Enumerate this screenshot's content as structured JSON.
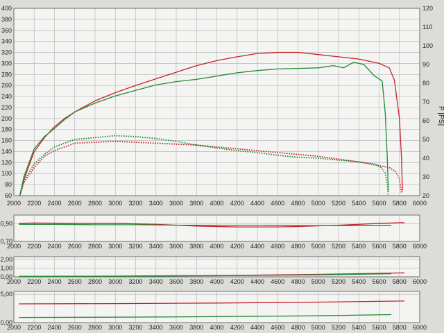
{
  "colors": {
    "red": "#c8202a",
    "green": "#1f8a32",
    "grid": "#b9b9b9",
    "paper": "#f4f4f2",
    "axis": "#555555"
  },
  "chart_data": [
    {
      "id": "main",
      "type": "line",
      "xlim": [
        2000,
        6000
      ],
      "xticks": [
        "2000",
        "2200",
        "2400",
        "2600",
        "2800",
        "3000",
        "3200",
        "3400",
        "3600",
        "3800",
        "4000",
        "4200",
        "4400",
        "4600",
        "4800",
        "5000",
        "5200",
        "5400",
        "5600",
        "5800",
        "6000"
      ],
      "ylim": [
        60,
        400
      ],
      "yticks": [
        "60",
        "80",
        "100",
        "120",
        "140",
        "160",
        "180",
        "200",
        "220",
        "240",
        "260",
        "280",
        "300",
        "320",
        "340",
        "360",
        "380",
        "400"
      ],
      "y2lim": [
        20,
        120
      ],
      "y2ticks": [
        "20",
        "30",
        "40",
        "50",
        "60",
        "70",
        "80",
        "90",
        "100",
        "110",
        "120"
      ],
      "y2label": "P [PS]",
      "grid": true,
      "series": [
        {
          "color_key": "red",
          "style": "solid",
          "axis": "left",
          "x": [
            2060,
            2100,
            2200,
            2300,
            2400,
            2500,
            2600,
            2800,
            3000,
            3200,
            3400,
            3600,
            3800,
            4000,
            4200,
            4400,
            4600,
            4800,
            5000,
            5200,
            5400,
            5600,
            5700,
            5750,
            5800,
            5820,
            5830
          ],
          "y": [
            62,
            90,
            140,
            165,
            185,
            200,
            212,
            232,
            247,
            260,
            272,
            284,
            296,
            305,
            312,
            318,
            320,
            320,
            316,
            312,
            308,
            300,
            292,
            270,
            200,
            130,
            68
          ]
        },
        {
          "color_key": "green",
          "style": "solid",
          "axis": "left",
          "x": [
            2060,
            2100,
            2200,
            2300,
            2400,
            2500,
            2600,
            2800,
            3000,
            3200,
            3400,
            3600,
            3800,
            4000,
            4200,
            4400,
            4600,
            4800,
            5000,
            5150,
            5250,
            5350,
            5450,
            5550,
            5630,
            5660,
            5680,
            5690
          ],
          "y": [
            62,
            95,
            145,
            167,
            182,
            198,
            212,
            228,
            241,
            251,
            261,
            267,
            271,
            277,
            283,
            287,
            290,
            291,
            292,
            296,
            292,
            302,
            298,
            278,
            268,
            210,
            130,
            68
          ]
        },
        {
          "color_key": "red",
          "style": "dotted",
          "axis": "right",
          "x": [
            2060,
            2100,
            2200,
            2300,
            2400,
            2500,
            2600,
            2800,
            3000,
            3200,
            3400,
            3600,
            3800,
            4000,
            4200,
            4400,
            4600,
            4800,
            5000,
            5200,
            5400,
            5600,
            5700,
            5760,
            5800,
            5820
          ],
          "y": [
            20,
            27,
            35,
            41,
            44,
            46,
            48,
            48.5,
            49,
            48.5,
            48,
            47.5,
            47,
            46,
            45,
            44,
            43,
            42,
            41,
            39.5,
            38,
            36,
            35,
            33,
            29,
            21
          ]
        },
        {
          "color_key": "green",
          "style": "dotted",
          "axis": "right",
          "x": [
            2060,
            2100,
            2200,
            2300,
            2400,
            2500,
            2600,
            2800,
            3000,
            3200,
            3400,
            3600,
            3800,
            4000,
            4200,
            4400,
            4600,
            4800,
            5000,
            5200,
            5400,
            5550,
            5620,
            5660,
            5680,
            5690
          ],
          "y": [
            20,
            28,
            37,
            42,
            46,
            48,
            50,
            51,
            52,
            51.5,
            50.5,
            49,
            47,
            45.5,
            44,
            43,
            41.5,
            40.5,
            40,
            39,
            38,
            37,
            35,
            32,
            26,
            20
          ]
        }
      ]
    },
    {
      "id": "panel1",
      "type": "line",
      "xlim": [
        2000,
        6000
      ],
      "xticks": [
        "2000",
        "2200",
        "2400",
        "2600",
        "2800",
        "3000",
        "3200",
        "3400",
        "3600",
        "3800",
        "4000",
        "4200",
        "4400",
        "4600",
        "4800",
        "5000",
        "5200",
        "5400",
        "5600",
        "5800",
        "6000"
      ],
      "ylim": [
        0.7,
        1.0
      ],
      "yticks": [
        "0,70",
        "0,90"
      ],
      "yticks_values": [
        0.7,
        0.9
      ],
      "series": [
        {
          "color_key": "red",
          "style": "solid",
          "x": [
            2050,
            2200,
            2600,
            3000,
            3400,
            3800,
            4200,
            4600,
            4800,
            5200,
            5600,
            5850
          ],
          "y": [
            0.905,
            0.91,
            0.905,
            0.905,
            0.895,
            0.875,
            0.865,
            0.865,
            0.87,
            0.885,
            0.905,
            0.915
          ]
        },
        {
          "color_key": "green",
          "style": "solid",
          "x": [
            2050,
            2400,
            2800,
            3200,
            3600,
            4000,
            4400,
            4800,
            5200,
            5600,
            5720
          ],
          "y": [
            0.895,
            0.895,
            0.89,
            0.89,
            0.885,
            0.885,
            0.885,
            0.88,
            0.88,
            0.88,
            0.88
          ]
        }
      ]
    },
    {
      "id": "panel2",
      "type": "line",
      "xlim": [
        2000,
        6000
      ],
      "xticks": [
        "2000",
        "2200",
        "2400",
        "2600",
        "2800",
        "3000",
        "3200",
        "3400",
        "3600",
        "3800",
        "4000",
        "4200",
        "4400",
        "4600",
        "4800",
        "5000",
        "5200",
        "5400",
        "5600",
        "5800",
        "6000"
      ],
      "ylim": [
        0,
        2.3
      ],
      "yticks": [
        "0,00",
        "1,00",
        "2,00"
      ],
      "yticks_values": [
        0,
        1,
        2
      ],
      "series": [
        {
          "color_key": "red",
          "style": "solid",
          "x": [
            2050,
            3000,
            4000,
            5000,
            5850
          ],
          "y": [
            0.05,
            0.08,
            0.15,
            0.28,
            0.45
          ]
        },
        {
          "color_key": "green",
          "style": "solid",
          "x": [
            2050,
            3000,
            4000,
            5000,
            5720
          ],
          "y": [
            0.04,
            0.06,
            0.12,
            0.22,
            0.35
          ]
        }
      ]
    },
    {
      "id": "panel3",
      "type": "line",
      "xlim": [
        2000,
        6000
      ],
      "xticks": [
        "2000",
        "2200",
        "2400",
        "2600",
        "2800",
        "3000",
        "3200",
        "3400",
        "3600",
        "3800",
        "4000",
        "4200",
        "4400",
        "4600",
        "4800",
        "5000",
        "5200",
        "5400",
        "5600",
        "5800",
        "6000"
      ],
      "ylim": [
        0,
        5.5
      ],
      "yticks": [
        "0,00",
        "5,00"
      ],
      "yticks_values": [
        0,
        5
      ],
      "series": [
        {
          "color_key": "red",
          "style": "solid",
          "x": [
            2050,
            3000,
            4000,
            5000,
            5850
          ],
          "y": [
            3.3,
            3.35,
            3.45,
            3.6,
            3.8
          ]
        },
        {
          "color_key": "green",
          "style": "solid",
          "x": [
            2050,
            3000,
            4000,
            5000,
            5720
          ],
          "y": [
            0.9,
            0.95,
            1.05,
            1.2,
            1.4
          ]
        }
      ]
    }
  ]
}
